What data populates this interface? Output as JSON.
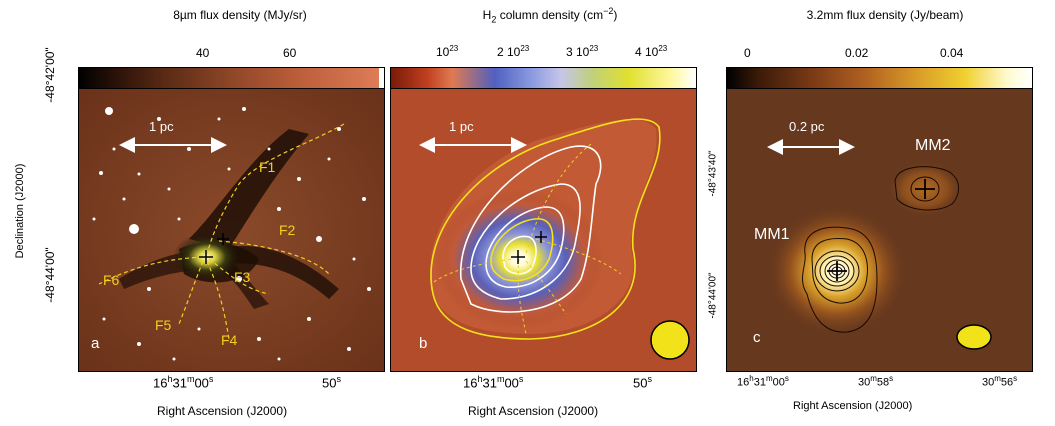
{
  "panels": [
    {
      "id": "a",
      "colorbar_title": "8µm flux density (MJy/sr)",
      "colorbar_ticks": [
        "40",
        "60"
      ],
      "scalebar": "1 pc",
      "filaments": [
        "F1",
        "F2",
        "F3",
        "F4",
        "F5",
        "F6"
      ],
      "label": "a",
      "x_ticks": [
        "16h31m00s",
        "50s"
      ],
      "xlabel": "Right Ascension (J2000)",
      "ylabel": "Declination (J2000)",
      "y_ticks": [
        "-48°42'00\"",
        "-48°44'00\""
      ]
    },
    {
      "id": "b",
      "colorbar_title": "H2 column density (cm-2)",
      "colorbar_ticks": [
        "10^23",
        "2 10^23",
        "3 10^23",
        "4 10^23"
      ],
      "scalebar": "1 pc",
      "label": "b",
      "x_ticks": [
        "16h31m00s",
        "50s"
      ],
      "xlabel": "Right Ascension (J2000)"
    },
    {
      "id": "c",
      "colorbar_title": "3.2mm flux density (Jy/beam)",
      "colorbar_ticks": [
        "0",
        "0.02",
        "0.04"
      ],
      "scalebar": "0.2 pc",
      "sources": [
        "MM1",
        "MM2"
      ],
      "label": "c",
      "x_ticks": [
        "16h31m00s",
        "30m58s",
        "30m56s"
      ],
      "xlabel": "Right Ascension (J2000)",
      "y_ticks": [
        "-48°43'40\"",
        "-48°44'00\""
      ]
    }
  ],
  "colors": {
    "panel_a_bg": "#7a3d22",
    "panel_b_bg": "#b04a28",
    "panel_c_bg": "#6a3a1f",
    "filament_line": "#f0d020",
    "contour_white": "#ffffff",
    "contour_yellow": "#f5e21a",
    "beam": "#f2e21a"
  }
}
